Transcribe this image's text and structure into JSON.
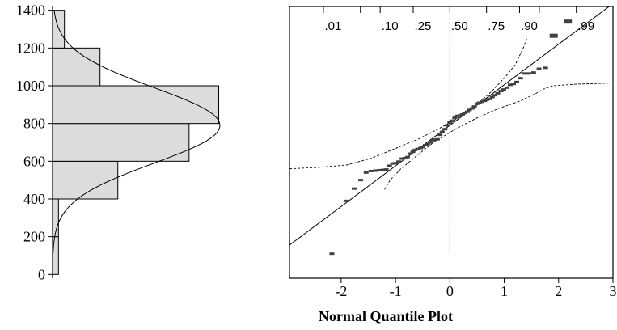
{
  "chart_data": [
    {
      "type": "histogram",
      "orientation": "horizontal",
      "y_ticks": [
        "0",
        "200",
        "400",
        "600",
        "800",
        "1000",
        "1200",
        "1400"
      ],
      "ylim": [
        -20,
        1420
      ],
      "bins": [
        {
          "from": 0,
          "to": 200,
          "count": 1
        },
        {
          "from": 200,
          "to": 400,
          "count": 1
        },
        {
          "from": 400,
          "to": 600,
          "count": 11
        },
        {
          "from": 600,
          "to": 800,
          "count": 23
        },
        {
          "from": 800,
          "to": 1000,
          "count": 28
        },
        {
          "from": 1000,
          "to": 1200,
          "count": 8
        },
        {
          "from": 1200,
          "to": 1400,
          "count": 2
        }
      ],
      "count_max": 29,
      "normal_curve": {
        "mean": 790,
        "sd": 200
      },
      "bar_color": "#dcdcdc"
    },
    {
      "type": "scatter",
      "title": "",
      "xlabel": "Normal Quantile Plot",
      "ylabel": "",
      "xlim": [
        -2.95,
        3
      ],
      "ylim": [
        -20,
        1420
      ],
      "x_ticks": [
        "-2",
        "-1",
        "0",
        "1",
        "2",
        "3"
      ],
      "prob_labels": [
        {
          "label": ".01",
          "q": -2.326
        },
        {
          "label": ".10",
          "q": -1.2816
        },
        {
          "label": ".25",
          "q": -0.6745
        },
        {
          "label": ".50",
          "q": 0.0
        },
        {
          "label": ".75",
          "q": 0.6745
        },
        {
          "label": ".90",
          "q": 1.2816
        },
        {
          "label": ".99",
          "q": 2.326
        }
      ],
      "prob_ticks": [
        -2.326,
        -1.645,
        -1.2816,
        -0.6745,
        0.0,
        0.6745,
        1.2816,
        1.645,
        2.326
      ],
      "fit_line": {
        "intercept": 790,
        "slope": 215
      },
      "median_line_x": 0,
      "points": [
        [
          -2.17,
          110
        ],
        [
          -1.91,
          390
        ],
        [
          -1.76,
          455
        ],
        [
          -1.64,
          500
        ],
        [
          -1.54,
          540
        ],
        [
          -1.45,
          548
        ],
        [
          -1.37,
          550
        ],
        [
          -1.3,
          552
        ],
        [
          -1.23,
          554
        ],
        [
          -1.17,
          556
        ],
        [
          -1.11,
          576
        ],
        [
          -1.05,
          588
        ],
        [
          -0.99,
          590
        ],
        [
          -0.94,
          598
        ],
        [
          -0.88,
          614
        ],
        [
          -0.83,
          616
        ],
        [
          -0.78,
          622
        ],
        [
          -0.73,
          640
        ],
        [
          -0.68,
          650
        ],
        [
          -0.64,
          660
        ],
        [
          -0.59,
          665
        ],
        [
          -0.54,
          670
        ],
        [
          -0.5,
          675
        ],
        [
          -0.45,
          685
        ],
        [
          -0.41,
          690
        ],
        [
          -0.36,
          700
        ],
        [
          -0.32,
          712
        ],
        [
          -0.27,
          714
        ],
        [
          -0.23,
          716
        ],
        [
          -0.18,
          740
        ],
        [
          -0.14,
          755
        ],
        [
          -0.09,
          770
        ],
        [
          -0.05,
          790
        ],
        [
          0.0,
          805
        ],
        [
          0.05,
          815
        ],
        [
          0.09,
          830
        ],
        [
          0.14,
          840
        ],
        [
          0.18,
          842
        ],
        [
          0.23,
          848
        ],
        [
          0.27,
          856
        ],
        [
          0.32,
          862
        ],
        [
          0.36,
          872
        ],
        [
          0.41,
          880
        ],
        [
          0.45,
          890
        ],
        [
          0.5,
          905
        ],
        [
          0.54,
          910
        ],
        [
          0.59,
          915
        ],
        [
          0.64,
          920
        ],
        [
          0.68,
          926
        ],
        [
          0.73,
          930
        ],
        [
          0.78,
          940
        ],
        [
          0.83,
          950
        ],
        [
          0.88,
          960
        ],
        [
          0.94,
          972
        ],
        [
          0.99,
          980
        ],
        [
          1.05,
          990
        ],
        [
          1.11,
          1005
        ],
        [
          1.17,
          1010
        ],
        [
          1.23,
          1020
        ],
        [
          1.3,
          1040
        ],
        [
          1.37,
          1065
        ],
        [
          1.45,
          1065
        ],
        [
          1.54,
          1070
        ],
        [
          1.64,
          1090
        ],
        [
          1.76,
          1095
        ],
        [
          1.91,
          1265
        ],
        [
          2.17,
          1340
        ]
      ],
      "confidence_band": {
        "upper": [
          [
            -2.95,
            560
          ],
          [
            -2.4,
            568
          ],
          [
            -1.9,
            580
          ],
          [
            -1.45,
            615
          ],
          [
            -1.0,
            668
          ],
          [
            -0.6,
            715
          ],
          [
            -0.25,
            765
          ],
          [
            0.1,
            820
          ],
          [
            0.45,
            890
          ],
          [
            0.75,
            965
          ],
          [
            1.0,
            1040
          ],
          [
            1.2,
            1110
          ],
          [
            1.35,
            1200
          ],
          [
            1.42,
            1255
          ]
        ],
        "lower": [
          [
            -1.2,
            450
          ],
          [
            -1.1,
            500
          ],
          [
            -0.9,
            560
          ],
          [
            -0.65,
            620
          ],
          [
            -0.3,
            700
          ],
          [
            0.1,
            770
          ],
          [
            0.5,
            830
          ],
          [
            0.9,
            880
          ],
          [
            1.3,
            920
          ],
          [
            1.6,
            962
          ],
          [
            1.72,
            982
          ],
          [
            1.9,
            1000
          ],
          [
            2.3,
            1008
          ],
          [
            3.0,
            1015
          ]
        ]
      },
      "point_color": "#404040"
    }
  ]
}
